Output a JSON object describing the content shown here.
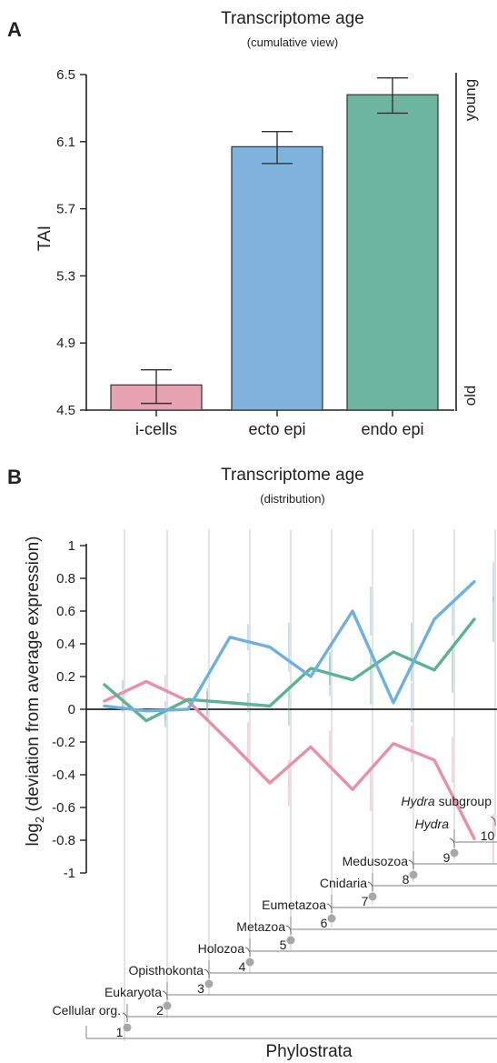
{
  "colors": {
    "icells": "#e8a3b3",
    "icells_line": "#e891a6",
    "ecto": "#7fb3dd",
    "ecto_line": "#6fb0e0",
    "endo": "#6cb59e",
    "endo_line": "#5bb391",
    "axis": "#222222",
    "grid": "#c8c8c8",
    "tree": "#9a9a9a",
    "node": "#a8a8a8"
  },
  "chart_data": [
    {
      "panel": "A",
      "type": "bar",
      "title": "Transcriptome age",
      "subtitle": "(cumulative view)",
      "ylabel": "TAI",
      "ylim": [
        4.5,
        6.5
      ],
      "yticks": [
        "6.5",
        "6.1",
        "5.7",
        "5.3",
        "4.9",
        "4.5"
      ],
      "ytick_values": [
        6.5,
        6.1,
        5.7,
        5.3,
        4.9,
        4.5
      ],
      "categories": [
        "i-cells",
        "ecto epi",
        "endo epi"
      ],
      "values": [
        4.65,
        6.07,
        6.38
      ],
      "err_low": [
        4.54,
        5.97,
        6.27
      ],
      "err_high": [
        4.74,
        6.16,
        6.48
      ],
      "right_axis_top": "young",
      "right_axis_bottom": "old"
    },
    {
      "panel": "B",
      "type": "line",
      "title": "Transcriptome age",
      "subtitle": "(distribution)",
      "ylabel_pre": "log",
      "ylabel_sub": "2",
      "ylabel_post": " (deviation from average expression)",
      "xlabel": "Phylostrata",
      "ylim": [
        -1,
        1
      ],
      "yticks": [
        "1",
        "0.8",
        "0.6",
        "0.4",
        "0.2",
        "0",
        "-0.2",
        "-0.4",
        "-0.6",
        "-0.8",
        "-1"
      ],
      "ytick_values": [
        1,
        0.8,
        0.6,
        0.4,
        0.2,
        0,
        -0.2,
        -0.4,
        -0.6,
        -0.8,
        -1
      ],
      "x": [
        1,
        2,
        3,
        4,
        5,
        6,
        7,
        8,
        9,
        10
      ],
      "series": [
        {
          "key": "icells",
          "values": [
            0.05,
            0.17,
            0.05,
            -0.2,
            -0.45,
            -0.23,
            -0.49,
            -0.21,
            -0.31,
            -0.79
          ],
          "err": [
            0.05,
            0.04,
            0.08,
            0.12,
            0.14,
            0.1,
            0.13,
            0.11,
            0.14,
            0.15
          ]
        },
        {
          "key": "ecto",
          "values": [
            0.02,
            -0.01,
            0.0,
            0.44,
            0.38,
            0.2,
            0.6,
            0.04,
            0.55,
            0.78
          ],
          "err": [
            0.04,
            0.06,
            0.06,
            0.08,
            0.15,
            0.12,
            0.15,
            0.12,
            0.1,
            0.12
          ]
        },
        {
          "key": "endo",
          "values": [
            0.15,
            -0.07,
            0.06,
            0.04,
            0.02,
            0.25,
            0.18,
            0.35,
            0.24,
            0.55
          ],
          "err": [
            0.03,
            0.04,
            0.05,
            0.06,
            0.12,
            0.1,
            0.15,
            0.18,
            0.14,
            0.14
          ]
        }
      ],
      "phylostrata": [
        {
          "num": "1",
          "name": "Cellular org.",
          "italic": false
        },
        {
          "num": "2",
          "name": "Eukaryota",
          "italic": false
        },
        {
          "num": "3",
          "name": "Opisthokonta",
          "italic": false
        },
        {
          "num": "4",
          "name": "Holozoa",
          "italic": false
        },
        {
          "num": "5",
          "name": "Metazoa",
          "italic": false
        },
        {
          "num": "6",
          "name": "Eumetazoa",
          "italic": false
        },
        {
          "num": "7",
          "name": "Cnidaria",
          "italic": false
        },
        {
          "num": "8",
          "name": "Medusozoa",
          "italic": false
        },
        {
          "num": "9",
          "name": "Hydra",
          "italic": true,
          "suffix": ""
        },
        {
          "num": "10",
          "name": "Hydra",
          "italic": true,
          "suffix": " subgroup"
        }
      ]
    }
  ]
}
